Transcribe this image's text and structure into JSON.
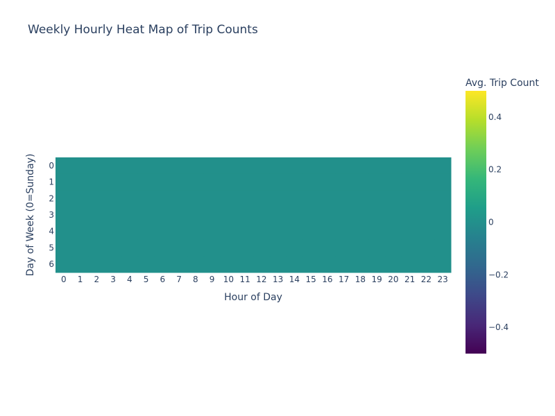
{
  "chart_data": {
    "type": "heatmap",
    "title": "Weekly Hourly Heat Map of Trip Counts",
    "xlabel": "Hour of Day",
    "ylabel": "Day of Week (0=Sunday)",
    "x": [
      "0",
      "1",
      "2",
      "3",
      "4",
      "5",
      "6",
      "7",
      "8",
      "9",
      "10",
      "11",
      "12",
      "13",
      "14",
      "15",
      "16",
      "17",
      "18",
      "19",
      "20",
      "21",
      "22",
      "23"
    ],
    "y": [
      "0",
      "1",
      "2",
      "3",
      "4",
      "5",
      "6"
    ],
    "z": [
      [
        0,
        0,
        0,
        0,
        0,
        0,
        0,
        0,
        0,
        0,
        0,
        0,
        0,
        0,
        0,
        0,
        0,
        0,
        0,
        0,
        0,
        0,
        0,
        0
      ],
      [
        0,
        0,
        0,
        0,
        0,
        0,
        0,
        0,
        0,
        0,
        0,
        0,
        0,
        0,
        0,
        0,
        0,
        0,
        0,
        0,
        0,
        0,
        0,
        0
      ],
      [
        0,
        0,
        0,
        0,
        0,
        0,
        0,
        0,
        0,
        0,
        0,
        0,
        0,
        0,
        0,
        0,
        0,
        0,
        0,
        0,
        0,
        0,
        0,
        0
      ],
      [
        0,
        0,
        0,
        0,
        0,
        0,
        0,
        0,
        0,
        0,
        0,
        0,
        0,
        0,
        0,
        0,
        0,
        0,
        0,
        0,
        0,
        0,
        0,
        0
      ],
      [
        0,
        0,
        0,
        0,
        0,
        0,
        0,
        0,
        0,
        0,
        0,
        0,
        0,
        0,
        0,
        0,
        0,
        0,
        0,
        0,
        0,
        0,
        0,
        0
      ],
      [
        0,
        0,
        0,
        0,
        0,
        0,
        0,
        0,
        0,
        0,
        0,
        0,
        0,
        0,
        0,
        0,
        0,
        0,
        0,
        0,
        0,
        0,
        0,
        0
      ],
      [
        0,
        0,
        0,
        0,
        0,
        0,
        0,
        0,
        0,
        0,
        0,
        0,
        0,
        0,
        0,
        0,
        0,
        0,
        0,
        0,
        0,
        0,
        0,
        0
      ]
    ],
    "colorscale": "Viridis",
    "zlim": [
      -0.5,
      0.5
    ],
    "colorbar": {
      "title": "Avg. Trip Count",
      "ticks": [
        0.4,
        0.2,
        0,
        -0.2,
        -0.4
      ],
      "tick_labels": [
        "0.4",
        "0.2",
        "0",
        "−0.2",
        "−0.4"
      ]
    },
    "grid": false
  }
}
